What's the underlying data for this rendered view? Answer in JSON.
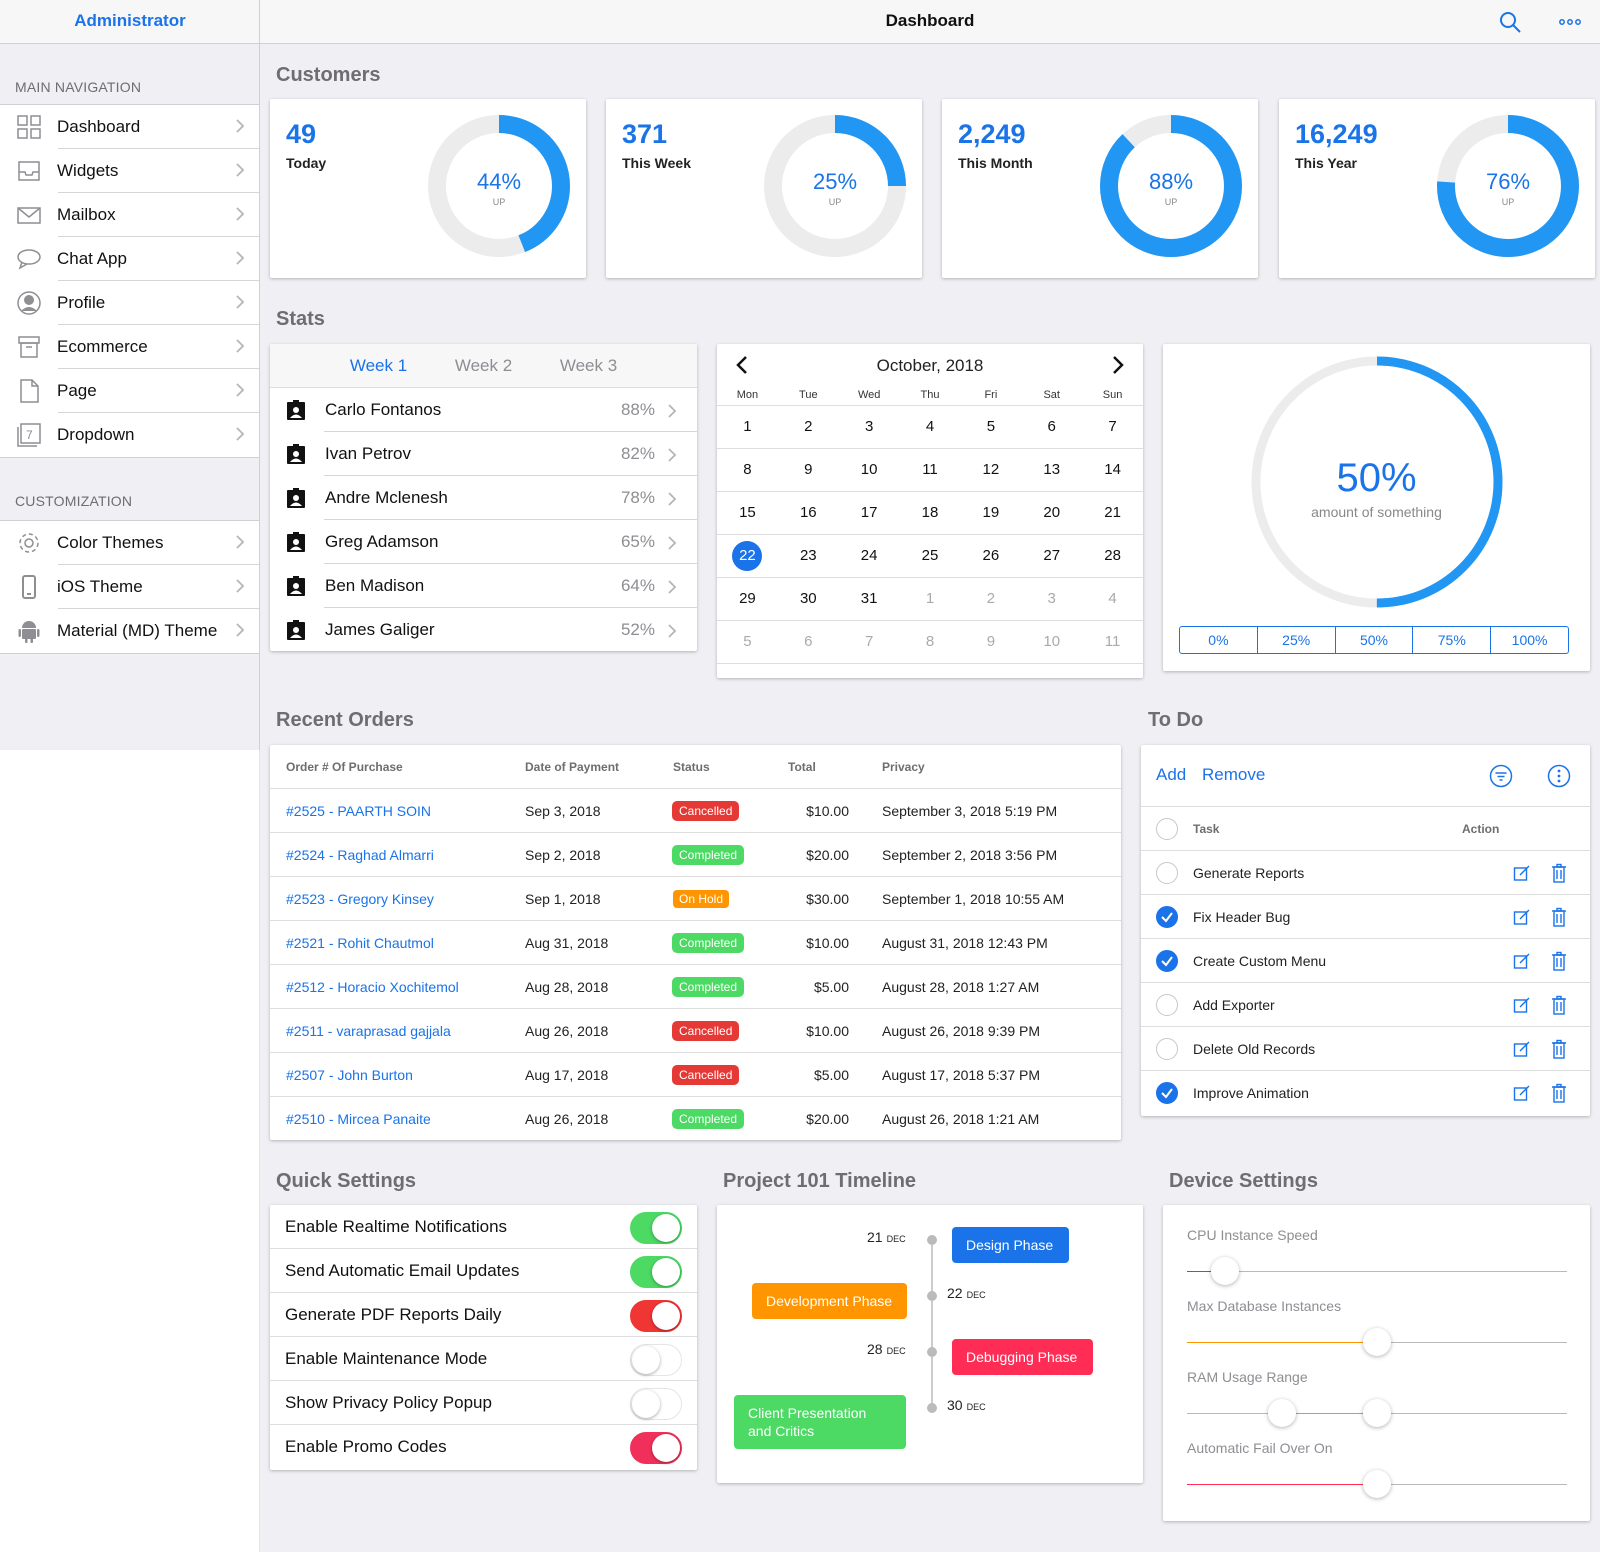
{
  "header": {
    "admin": "Administrator",
    "title": "Dashboard"
  },
  "sidebar": {
    "main_label": "MAIN NAVIGATION",
    "main_items": [
      {
        "label": "Dashboard",
        "icon": "grid-icon"
      },
      {
        "label": "Widgets",
        "icon": "inbox-icon"
      },
      {
        "label": "Mailbox",
        "icon": "mail-icon"
      },
      {
        "label": "Chat App",
        "icon": "chat-icon"
      },
      {
        "label": "Profile",
        "icon": "person-icon"
      },
      {
        "label": "Ecommerce",
        "icon": "archive-icon"
      },
      {
        "label": "Page",
        "icon": "document-icon"
      },
      {
        "label": "Dropdown",
        "icon": "calendar-icon"
      }
    ],
    "custom_label": "CUSTOMIZATION",
    "custom_items": [
      {
        "label": "Color Themes",
        "icon": "gear-icon"
      },
      {
        "label": "iOS Theme",
        "icon": "phone-icon"
      },
      {
        "label": "Material (MD) Theme",
        "icon": "android-icon"
      }
    ]
  },
  "customers": {
    "title": "Customers",
    "cards": [
      {
        "value": "49",
        "label": "Today",
        "percent": "44%",
        "fraction": 0.44,
        "sub": "UP"
      },
      {
        "value": "371",
        "label": "This Week",
        "percent": "25%",
        "fraction": 0.25,
        "sub": "UP"
      },
      {
        "value": "2,249",
        "label": "This Month",
        "percent": "88%",
        "fraction": 0.88,
        "sub": "UP"
      },
      {
        "value": "16,249",
        "label": "This Year",
        "percent": "76%",
        "fraction": 0.76,
        "sub": "UP"
      }
    ]
  },
  "stats": {
    "title": "Stats",
    "tabs": [
      "Week 1",
      "Week 2",
      "Week 3"
    ],
    "rows": [
      {
        "name": "Carlo Fontanos",
        "pct": "88%"
      },
      {
        "name": "Ivan Petrov",
        "pct": "82%"
      },
      {
        "name": "Andre Mclenesh",
        "pct": "78%"
      },
      {
        "name": "Greg Adamson",
        "pct": "65%"
      },
      {
        "name": "Ben Madison",
        "pct": "64%"
      },
      {
        "name": "James Galiger",
        "pct": "52%"
      }
    ]
  },
  "calendar": {
    "title": "October, 2018",
    "dow": [
      "Mon",
      "Tue",
      "Wed",
      "Thu",
      "Fri",
      "Sat",
      "Sun"
    ],
    "weeks": [
      [
        "1",
        "2",
        "3",
        "4",
        "5",
        "6",
        "7"
      ],
      [
        "8",
        "9",
        "10",
        "11",
        "12",
        "13",
        "14"
      ],
      [
        "15",
        "16",
        "17",
        "18",
        "19",
        "20",
        "21"
      ],
      [
        "22",
        "23",
        "24",
        "25",
        "26",
        "27",
        "28"
      ],
      [
        "29",
        "30",
        "31",
        "1",
        "2",
        "3",
        "4"
      ],
      [
        "5",
        "6",
        "7",
        "8",
        "9",
        "10",
        "11"
      ]
    ],
    "selected": "22"
  },
  "gauge": {
    "value": "50%",
    "fraction": 0.5,
    "caption": "amount of something",
    "segments": [
      "0%",
      "25%",
      "50%",
      "75%",
      "100%"
    ],
    "active_segment": "50%"
  },
  "orders": {
    "title": "Recent Orders",
    "headers": [
      "Order # Of Purchase",
      "Date of Payment",
      "Status",
      "Total",
      "Privacy"
    ],
    "rows": [
      {
        "order": "#2525 - PAARTH SOIN",
        "date": "Sep 3, 2018",
        "status": "Cancelled",
        "total": "$10.00",
        "privacy": "September 3, 2018 5:19 PM"
      },
      {
        "order": "#2524 - Raghad Almarri",
        "date": "Sep 2, 2018",
        "status": "Completed",
        "total": "$20.00",
        "privacy": "September 2, 2018 3:56 PM"
      },
      {
        "order": "#2523 - Gregory Kinsey",
        "date": "Sep 1, 2018",
        "status": "On Hold",
        "total": "$30.00",
        "privacy": "September 1, 2018 10:55 AM"
      },
      {
        "order": "#2521 - Rohit Chautmol",
        "date": "Aug 31, 2018",
        "status": "Completed",
        "total": "$10.00",
        "privacy": "August 31, 2018 12:43 PM"
      },
      {
        "order": "#2512 - Horacio Xochitemol",
        "date": "Aug 28, 2018",
        "status": "Completed",
        "total": "$5.00",
        "privacy": "August 28, 2018 1:27 AM"
      },
      {
        "order": "#2511 - varaprasad gajjala",
        "date": "Aug 26, 2018",
        "status": "Cancelled",
        "total": "$10.00",
        "privacy": "August 26, 2018 9:39 PM"
      },
      {
        "order": "#2507 - John Burton",
        "date": "Aug 17, 2018",
        "status": "Cancelled",
        "total": "$5.00",
        "privacy": "August 17, 2018 5:37 PM"
      },
      {
        "order": "#2510 - Mircea Panaite",
        "date": "Aug 26, 2018",
        "status": "Completed",
        "total": "$20.00",
        "privacy": "August 26, 2018 1:21 AM"
      }
    ],
    "status_colors": {
      "Cancelled": "#e53935",
      "Completed": "#4cd964",
      "On Hold": "#ff9500"
    }
  },
  "todo": {
    "title": "To Do",
    "add": "Add",
    "remove": "Remove",
    "col_task": "Task",
    "col_action": "Action",
    "items": [
      {
        "task": "Generate Reports",
        "done": false
      },
      {
        "task": "Fix Header Bug",
        "done": true
      },
      {
        "task": "Create Custom Menu",
        "done": true
      },
      {
        "task": "Add Exporter",
        "done": false
      },
      {
        "task": "Delete Old Records",
        "done": false
      },
      {
        "task": "Improve Animation",
        "done": true
      }
    ]
  },
  "quick_settings": {
    "title": "Quick Settings",
    "items": [
      {
        "label": "Enable Realtime Notifications",
        "on": true,
        "color": "#4cd964"
      },
      {
        "label": "Send Automatic Email Updates",
        "on": true,
        "color": "#4cd964"
      },
      {
        "label": "Generate PDF Reports Daily",
        "on": true,
        "color": "#f03535"
      },
      {
        "label": "Enable Maintenance Mode",
        "on": false,
        "color": "#ffffff"
      },
      {
        "label": "Show Privacy Policy Popup",
        "on": false,
        "color": "#ffffff"
      },
      {
        "label": "Enable Promo Codes",
        "on": true,
        "color": "#f0305a"
      }
    ]
  },
  "timeline": {
    "title": "Project 101 Timeline",
    "events": [
      {
        "day": "21",
        "month": "DEC",
        "label": "Design Phase",
        "color": "#1a73e8"
      },
      {
        "day": "22",
        "month": "DEC",
        "label": "Development Phase",
        "color": "#ff9500"
      },
      {
        "day": "28",
        "month": "DEC",
        "label": "Debugging Phase",
        "color": "#ff2d55"
      },
      {
        "day": "30",
        "month": "DEC",
        "label": "Client Presentation and Critics",
        "color": "#4cd964"
      }
    ]
  },
  "device_settings": {
    "title": "Device Settings",
    "sliders": [
      {
        "label": "CPU Instance Speed",
        "color": "#1a73e8",
        "low": 0.1
      },
      {
        "label": "Max Database Instances",
        "color": "#ff9500",
        "low": 0.5
      },
      {
        "label": "RAM Usage Range",
        "color": "#4cd964",
        "low": 0.25,
        "high": 0.5
      },
      {
        "label": "Automatic Fail Over On",
        "color": "#ff2d55",
        "low": 0.5
      }
    ]
  }
}
